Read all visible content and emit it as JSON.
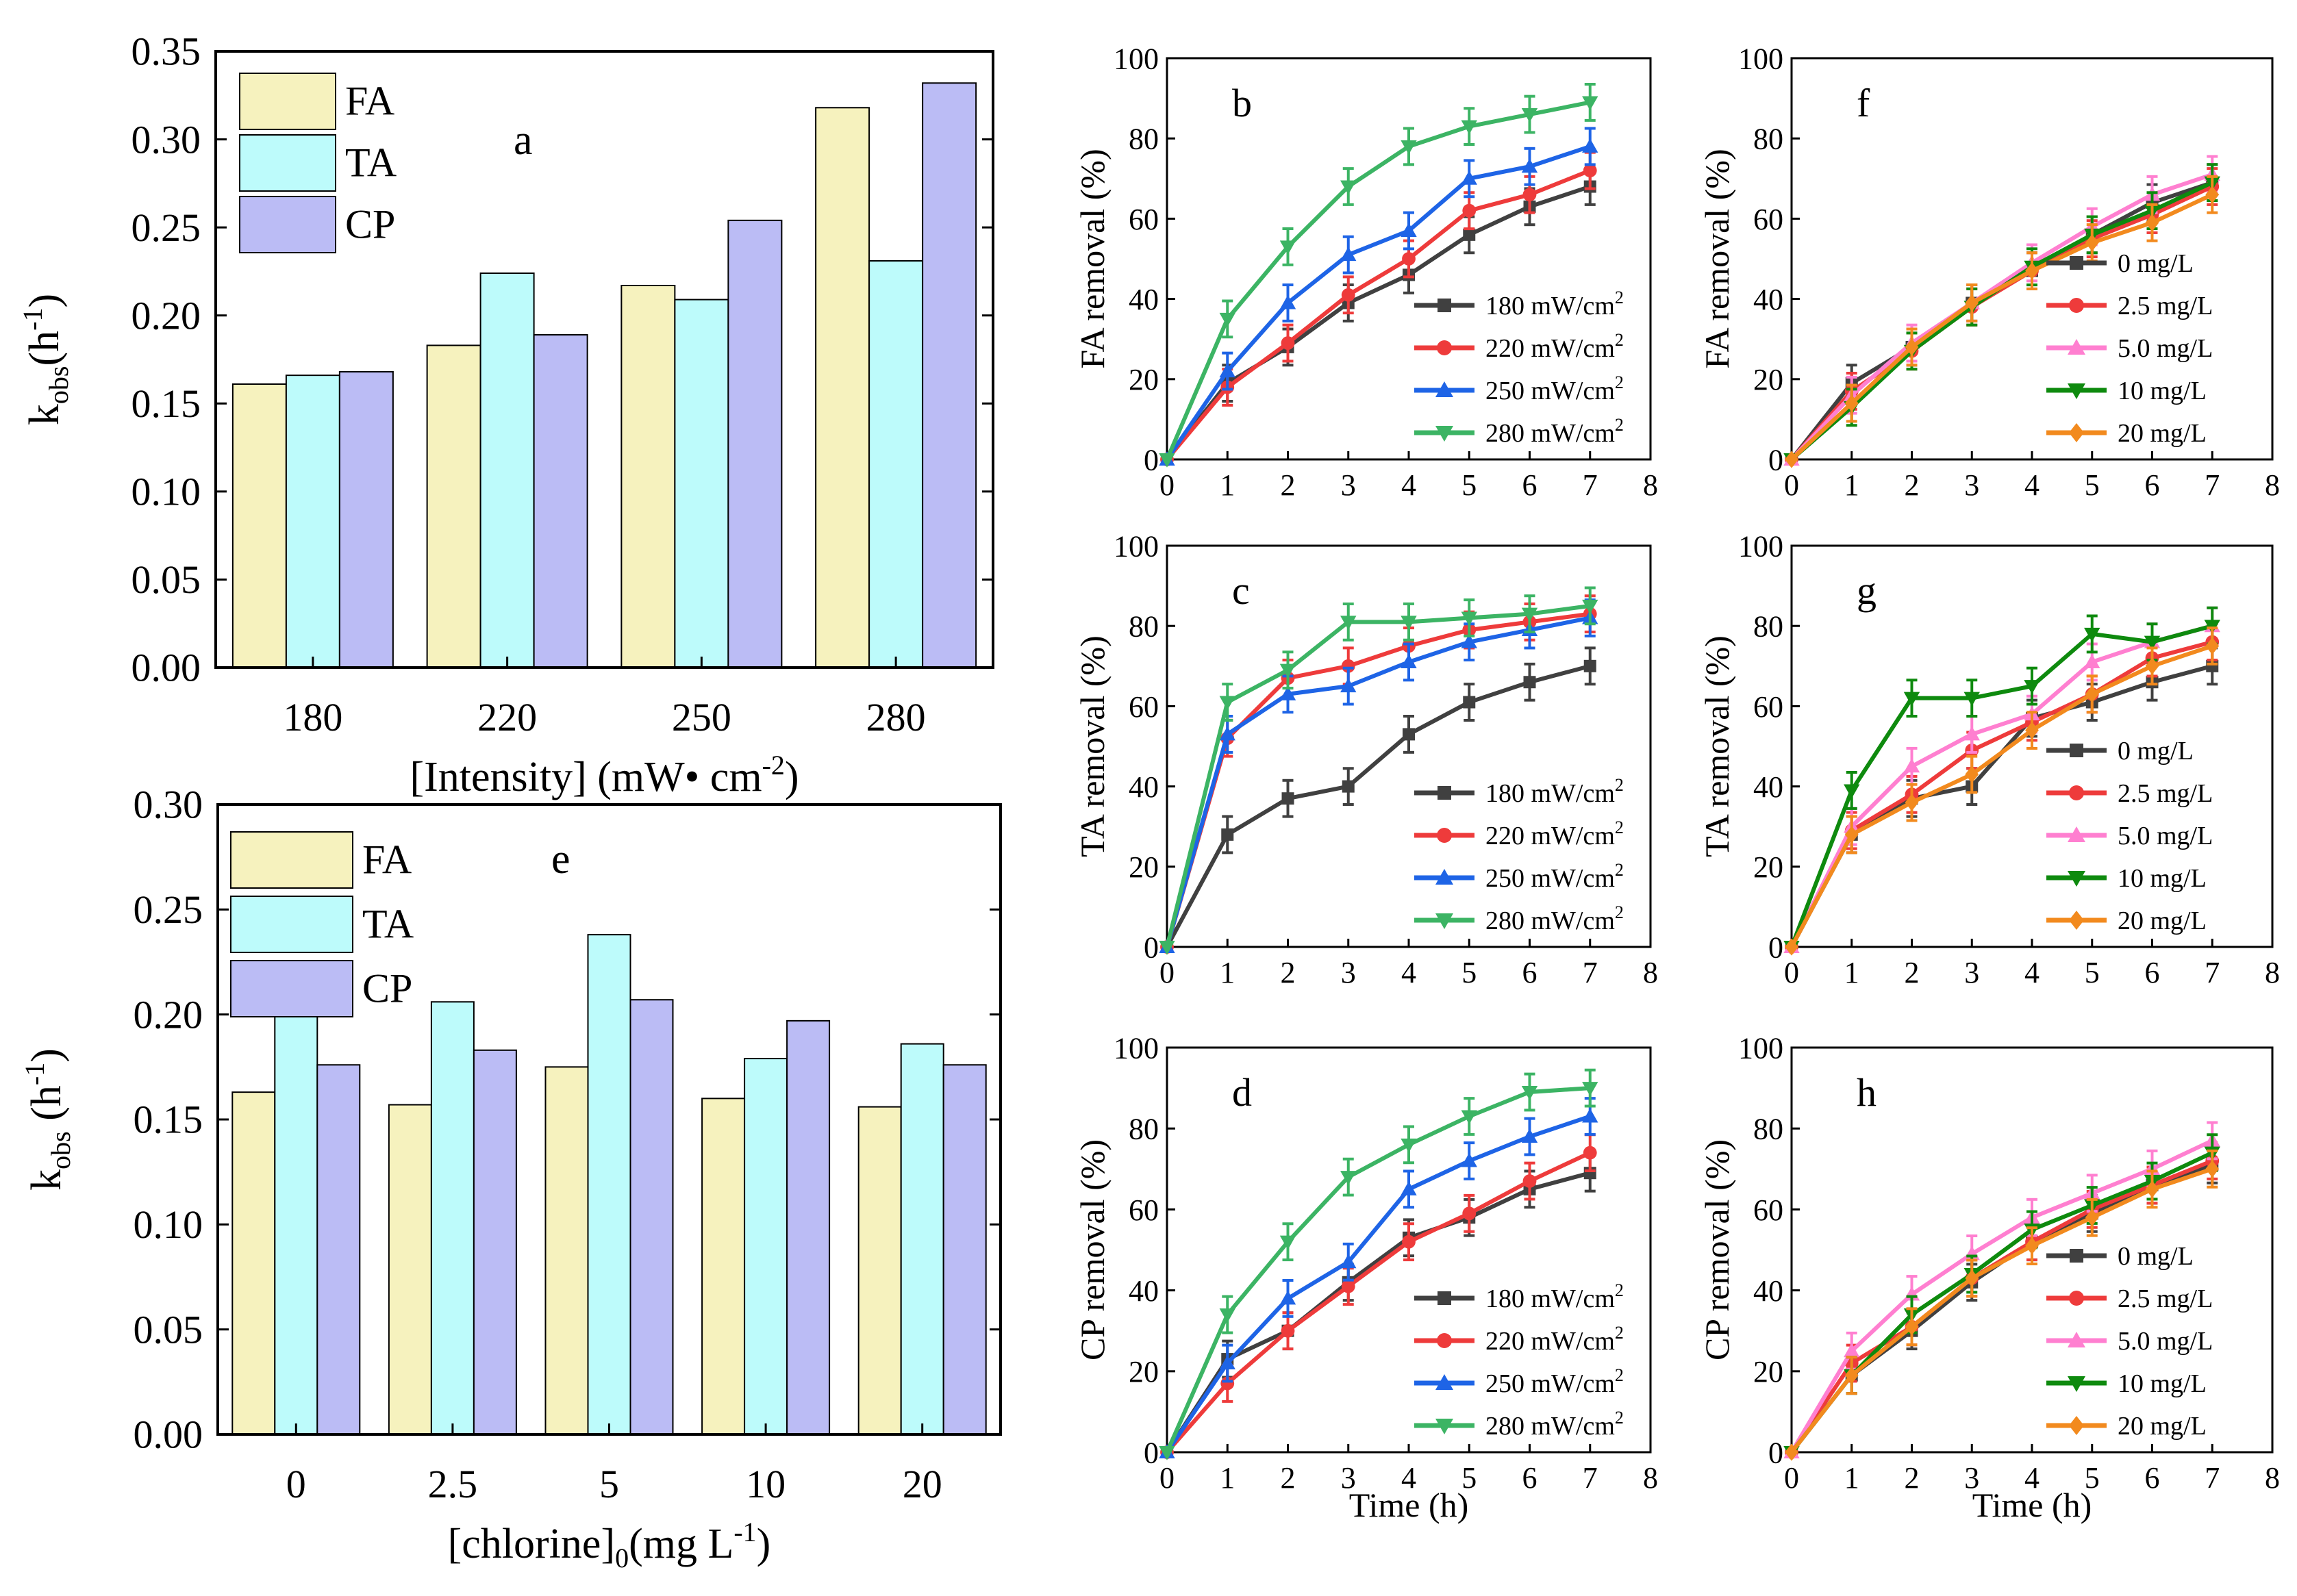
{
  "colors": {
    "FA": "#F6F2BE",
    "TA": "#BDFBFB",
    "CP": "#BBBCF5",
    "s1": "#404040",
    "s2": "#EE3B3B",
    "s3": "#1E64E6",
    "s4": "#3CB464",
    "c1": "#404040",
    "c2": "#EE3B3B",
    "c3": "#FF7FD0",
    "c4": "#0E8A0E",
    "c5": "#F28A1E"
  },
  "chart_data": [
    {
      "id": "a",
      "type": "bar",
      "panel_label": "a",
      "categories": [
        "180",
        "220",
        "250",
        "280"
      ],
      "series": [
        {
          "name": "FA",
          "values": [
            0.161,
            0.183,
            0.217,
            0.318
          ]
        },
        {
          "name": "TA",
          "values": [
            0.166,
            0.224,
            0.209,
            0.231
          ]
        },
        {
          "name": "CP",
          "values": [
            0.168,
            0.189,
            0.254,
            0.332
          ]
        }
      ],
      "xlabel": "[Intensity] (mW• cm",
      "xlabel_sup": "-2",
      "xlabel_tail": ")",
      "ylabel": "k",
      "ylabel_sub": "obs",
      "ylabel_mid": "(h",
      "ylabel_sup": "-1",
      "ylabel_tail": ")",
      "ylim": [
        0,
        0.35
      ],
      "yticks": [
        "0.00",
        "0.05",
        "0.10",
        "0.15",
        "0.20",
        "0.25",
        "0.30",
        "0.35"
      ],
      "legend_position": "top-left"
    },
    {
      "id": "e",
      "type": "bar",
      "panel_label": "e",
      "categories": [
        "0",
        "2.5",
        "5",
        "10",
        "20"
      ],
      "series": [
        {
          "name": "FA",
          "values": [
            0.163,
            0.157,
            0.175,
            0.16,
            0.156
          ]
        },
        {
          "name": "TA",
          "values": [
            0.2,
            0.206,
            0.238,
            0.179,
            0.186
          ]
        },
        {
          "name": "CP",
          "values": [
            0.176,
            0.183,
            0.207,
            0.197,
            0.176
          ]
        }
      ],
      "xlabel": "[chlorine]",
      "xlabel_sub": "0",
      "xlabel_mid": "(mg L",
      "xlabel_sup": "-1",
      "xlabel_tail": ")",
      "ylabel": "k",
      "ylabel_sub": "obs",
      "ylabel_mid": " (h",
      "ylabel_sup": "-1",
      "ylabel_tail": ")",
      "ylim": [
        0,
        0.3
      ],
      "yticks": [
        "0.00",
        "0.05",
        "0.10",
        "0.15",
        "0.20",
        "0.25",
        "0.30"
      ],
      "legend_position": "top-left"
    },
    {
      "id": "b",
      "type": "line",
      "panel_label": "b",
      "ylabel": "FA removal (%)",
      "xlabel": "",
      "x": [
        0,
        1,
        2,
        3,
        4,
        5,
        6,
        7
      ],
      "xlim": [
        0,
        8
      ],
      "ylim": [
        0,
        100
      ],
      "xticks": [
        "0",
        "1",
        "2",
        "3",
        "4",
        "5",
        "6",
        "7",
        "8"
      ],
      "yticks": [
        "0",
        "20",
        "40",
        "60",
        "80",
        "100"
      ],
      "legend_position": "bottom-right",
      "series": [
        {
          "name": "180 mW/cm",
          "sup": "2",
          "marker": "square",
          "values": [
            0,
            19,
            28,
            39,
            46,
            56,
            63,
            68
          ]
        },
        {
          "name": "220 mW/cm",
          "sup": "2",
          "marker": "circle",
          "values": [
            0,
            18,
            29,
            41,
            50,
            62,
            66,
            72
          ]
        },
        {
          "name": "250 mW/cm",
          "sup": "2",
          "marker": "triangle-up",
          "values": [
            0,
            22,
            39,
            51,
            57,
            70,
            73,
            78
          ]
        },
        {
          "name": "280 mW/cm",
          "sup": "2",
          "marker": "triangle-down",
          "values": [
            0,
            35,
            53,
            68,
            78,
            83,
            86,
            89
          ]
        }
      ]
    },
    {
      "id": "c",
      "type": "line",
      "panel_label": "c",
      "ylabel": "TA removal (%)",
      "xlabel": "",
      "x": [
        0,
        1,
        2,
        3,
        4,
        5,
        6,
        7
      ],
      "xlim": [
        0,
        8
      ],
      "ylim": [
        0,
        100
      ],
      "xticks": [
        "0",
        "1",
        "2",
        "3",
        "4",
        "5",
        "6",
        "7",
        "8"
      ],
      "yticks": [
        "0",
        "20",
        "40",
        "60",
        "80",
        "100"
      ],
      "legend_position": "bottom-right",
      "series": [
        {
          "name": "180 mW/cm",
          "sup": "2",
          "marker": "square",
          "values": [
            0,
            28,
            37,
            40,
            53,
            61,
            66,
            70
          ]
        },
        {
          "name": "220 mW/cm",
          "sup": "2",
          "marker": "circle",
          "values": [
            0,
            52,
            67,
            70,
            75,
            79,
            81,
            83
          ]
        },
        {
          "name": "250 mW/cm",
          "sup": "2",
          "marker": "triangle-up",
          "values": [
            0,
            53,
            63,
            65,
            71,
            76,
            79,
            82
          ]
        },
        {
          "name": "280 mW/cm",
          "sup": "2",
          "marker": "triangle-down",
          "values": [
            0,
            61,
            69,
            81,
            81,
            82,
            83,
            85
          ]
        }
      ]
    },
    {
      "id": "d",
      "type": "line",
      "panel_label": "d",
      "ylabel": "CP removal (%)",
      "xlabel": "Time (h)",
      "x": [
        0,
        1,
        2,
        3,
        4,
        5,
        6,
        7
      ],
      "xlim": [
        0,
        8
      ],
      "ylim": [
        0,
        100
      ],
      "xticks": [
        "0",
        "1",
        "2",
        "3",
        "4",
        "5",
        "6",
        "7",
        "8"
      ],
      "yticks": [
        "0",
        "20",
        "40",
        "60",
        "80",
        "100"
      ],
      "legend_position": "bottom-right",
      "series": [
        {
          "name": "180 mW/cm",
          "sup": "2",
          "marker": "square",
          "values": [
            0,
            23,
            30,
            42,
            53,
            58,
            65,
            69
          ]
        },
        {
          "name": "220 mW/cm",
          "sup": "2",
          "marker": "circle",
          "values": [
            0,
            17,
            30,
            41,
            52,
            59,
            67,
            74
          ]
        },
        {
          "name": "250 mW/cm",
          "sup": "2",
          "marker": "triangle-up",
          "values": [
            0,
            22,
            38,
            47,
            65,
            72,
            78,
            83
          ]
        },
        {
          "name": "280 mW/cm",
          "sup": "2",
          "marker": "triangle-down",
          "values": [
            0,
            34,
            52,
            68,
            76,
            83,
            89,
            90
          ]
        }
      ]
    },
    {
      "id": "f",
      "type": "line",
      "panel_label": "f",
      "ylabel": "FA removal (%)",
      "xlabel": "",
      "x": [
        0,
        1,
        2,
        3,
        4,
        5,
        6,
        7
      ],
      "xlim": [
        0,
        8
      ],
      "ylim": [
        0,
        100
      ],
      "xticks": [
        "0",
        "1",
        "2",
        "3",
        "4",
        "5",
        "6",
        "7",
        "8"
      ],
      "yticks": [
        "0",
        "20",
        "40",
        "60",
        "80",
        "100"
      ],
      "legend_position": "bottom-right",
      "series": [
        {
          "name": "0 mg/L",
          "marker": "square",
          "values": [
            0,
            19,
            28,
            39,
            47,
            56,
            64,
            69
          ]
        },
        {
          "name": "2.5 mg/L",
          "marker": "circle",
          "values": [
            0,
            17,
            27,
            38,
            47,
            55,
            61,
            68
          ]
        },
        {
          "name": "5.0 mg/L",
          "marker": "triangle-up",
          "values": [
            0,
            16,
            29,
            39,
            49,
            58,
            66,
            71
          ]
        },
        {
          "name": "10 mg/L",
          "marker": "triangle-down",
          "values": [
            0,
            13,
            27,
            38,
            48,
            56,
            62,
            69
          ]
        },
        {
          "name": "20 mg/L",
          "marker": "diamond",
          "values": [
            0,
            14,
            28,
            39,
            47,
            54,
            59,
            66
          ]
        }
      ]
    },
    {
      "id": "g",
      "type": "line",
      "panel_label": "g",
      "ylabel": "TA removal (%)",
      "xlabel": "",
      "x": [
        0,
        1,
        2,
        3,
        4,
        5,
        6,
        7
      ],
      "xlim": [
        0,
        8
      ],
      "ylim": [
        0,
        100
      ],
      "xticks": [
        "0",
        "1",
        "2",
        "3",
        "4",
        "5",
        "6",
        "7",
        "8"
      ],
      "yticks": [
        "0",
        "20",
        "40",
        "60",
        "80",
        "100"
      ],
      "legend_position": "bottom-right",
      "series": [
        {
          "name": "0 mg/L",
          "marker": "square",
          "values": [
            0,
            28,
            37,
            40,
            57,
            61,
            66,
            70
          ]
        },
        {
          "name": "2.5 mg/L",
          "marker": "circle",
          "values": [
            0,
            29,
            38,
            49,
            56,
            63,
            72,
            76
          ]
        },
        {
          "name": "5.0 mg/L",
          "marker": "triangle-up",
          "values": [
            0,
            30,
            45,
            53,
            58,
            71,
            76,
            80
          ]
        },
        {
          "name": "10 mg/L",
          "marker": "triangle-down",
          "values": [
            0,
            39,
            62,
            62,
            65,
            78,
            76,
            80
          ]
        },
        {
          "name": "20 mg/L",
          "marker": "diamond",
          "values": [
            0,
            28,
            36,
            43,
            54,
            63,
            70,
            75
          ]
        }
      ]
    },
    {
      "id": "h",
      "type": "line",
      "panel_label": "h",
      "ylabel": "CP removal (%)",
      "xlabel": "Time (h)",
      "x": [
        0,
        1,
        2,
        3,
        4,
        5,
        6,
        7
      ],
      "xlim": [
        0,
        8
      ],
      "ylim": [
        0,
        100
      ],
      "xticks": [
        "0",
        "1",
        "2",
        "3",
        "4",
        "5",
        "6",
        "7",
        "8"
      ],
      "yticks": [
        "0",
        "20",
        "40",
        "60",
        "80",
        "100"
      ],
      "legend_position": "bottom-right",
      "series": [
        {
          "name": "0 mg/L",
          "marker": "square",
          "values": [
            0,
            19,
            30,
            42,
            52,
            59,
            66,
            71
          ]
        },
        {
          "name": "2.5 mg/L",
          "marker": "circle",
          "values": [
            0,
            22,
            31,
            43,
            52,
            60,
            66,
            72
          ]
        },
        {
          "name": "5.0 mg/L",
          "marker": "triangle-up",
          "values": [
            0,
            25,
            39,
            49,
            58,
            64,
            70,
            77
          ]
        },
        {
          "name": "10 mg/L",
          "marker": "triangle-down",
          "values": [
            0,
            19,
            34,
            44,
            55,
            61,
            67,
            74
          ]
        },
        {
          "name": "20 mg/L",
          "marker": "diamond",
          "values": [
            0,
            19,
            31,
            43,
            51,
            58,
            65,
            70
          ]
        }
      ]
    }
  ]
}
